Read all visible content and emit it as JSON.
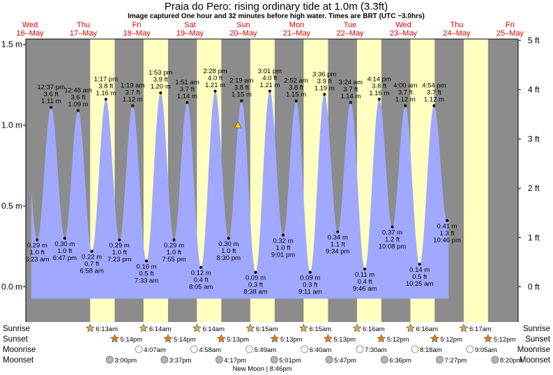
{
  "title": "Praia do Pero: rising  ordinary tide at 1.0m (3.3ft)",
  "subtitle": "Image captured One hour and 32 minutes before high water. Times are BRT (UTC −3.0hrs)",
  "chart_data": {
    "type": "area",
    "x_unit": "days since Wed 16-May 00:00",
    "ylabel_left_unit": "m",
    "ylabel_right_unit": "ft",
    "y_ticks_m": [
      "1.5 m",
      "1.0 m",
      "0.5 m",
      "0.0 m"
    ],
    "y_ticks_ft": [
      "5 ft",
      "4 ft",
      "3 ft",
      "2 ft",
      "1 ft",
      "0 ft"
    ],
    "days": [
      {
        "dow": "Wed",
        "date": "16–May"
      },
      {
        "dow": "Thu",
        "date": "17–May"
      },
      {
        "dow": "Fri",
        "date": "18–May"
      },
      {
        "dow": "Sat",
        "date": "19–May"
      },
      {
        "dow": "Sun",
        "date": "20–May"
      },
      {
        "dow": "Mon",
        "date": "21–May"
      },
      {
        "dow": "Tue",
        "date": "22–May"
      },
      {
        "dow": "Wed",
        "date": "23–May"
      },
      {
        "dow": "Thu",
        "date": "24–May"
      },
      {
        "dow": "Fri",
        "date": "25–May"
      }
    ],
    "tides": [
      {
        "type": "low",
        "t": "6:23 am",
        "m": "0.29 m",
        "ft": "1.0 ft",
        "h": 0.29
      },
      {
        "type": "high",
        "t": "12:37 pm",
        "m": "1.11 m",
        "ft": "3.6 ft",
        "h": 1.11
      },
      {
        "type": "low",
        "t": "6:47 pm",
        "m": "0.30 m",
        "ft": "1.0 ft",
        "h": 0.3
      },
      {
        "type": "high",
        "t": "12:48 am",
        "m": "1.09 m",
        "ft": "3.6 ft",
        "h": 1.09
      },
      {
        "type": "low",
        "t": "6:58 am",
        "m": "0.22 m",
        "ft": "0.7 ft",
        "h": 0.22
      },
      {
        "type": "high",
        "t": "1:17 pm",
        "m": "1.16 m",
        "ft": "3.8 ft",
        "h": 1.16
      },
      {
        "type": "low",
        "t": "7:23 pm",
        "m": "0.29 m",
        "ft": "1.0 ft",
        "h": 0.29
      },
      {
        "type": "high",
        "t": "1:19 am",
        "m": "1.12 m",
        "ft": "3.7 ft",
        "h": 1.12
      },
      {
        "type": "low",
        "t": "7:33 am",
        "m": "0.16 m",
        "ft": "0.5 ft",
        "h": 0.16
      },
      {
        "type": "high",
        "t": "1:53 pm",
        "m": "1.20 m",
        "ft": "3.9 ft",
        "h": 1.2
      },
      {
        "type": "low",
        "t": "7:55 pm",
        "m": "0.29 m",
        "ft": "1.0 ft",
        "h": 0.29
      },
      {
        "type": "high",
        "t": "1:51 am",
        "m": "1.14 m",
        "ft": "3.7 ft",
        "h": 1.14
      },
      {
        "type": "low",
        "t": "8:05 am",
        "m": "0.12 m",
        "ft": "0.4 ft",
        "h": 0.12
      },
      {
        "type": "high",
        "t": "2:28 pm",
        "m": "1.21 m",
        "ft": "4.0 ft",
        "h": 1.21
      },
      {
        "type": "low",
        "t": "8:30 pm",
        "m": "0.30 m",
        "ft": "1.0 ft",
        "h": 0.3
      },
      {
        "type": "high",
        "t": "2:19 am",
        "m": "1.15 m",
        "ft": "3.8 ft",
        "h": 1.15
      },
      {
        "type": "low",
        "t": "8:38 am",
        "m": "0.09 m",
        "ft": "0.3 ft",
        "h": 0.09
      },
      {
        "type": "high",
        "t": "3:01 pm",
        "m": "1.21 m",
        "ft": "4.0 ft",
        "h": 1.21
      },
      {
        "type": "low",
        "t": "9:01 pm",
        "m": "0.32 m",
        "ft": "1.0 ft",
        "h": 0.32
      },
      {
        "type": "high",
        "t": "2:52 am",
        "m": "1.15 m",
        "ft": "3.8 ft",
        "h": 1.15
      },
      {
        "type": "low",
        "t": "9:11 am",
        "m": "0.09 m",
        "ft": "0.3 ft",
        "h": 0.09
      },
      {
        "type": "high",
        "t": "3:36 pm",
        "m": "1.19 m",
        "ft": "3.9 ft",
        "h": 1.19
      },
      {
        "type": "low",
        "t": "9:34 pm",
        "m": "0.34 m",
        "ft": "1.1 ft",
        "h": 0.34
      },
      {
        "type": "high",
        "t": "3:24 am",
        "m": "1.14 m",
        "ft": "3.7 ft",
        "h": 1.14
      },
      {
        "type": "low",
        "t": "9:46 am",
        "m": "0.11 m",
        "ft": "0.4 ft",
        "h": 0.11
      },
      {
        "type": "high",
        "t": "4:14 pm",
        "m": "1.16 m",
        "ft": "3.8 ft",
        "h": 1.16
      },
      {
        "type": "low",
        "t": "10:08 pm",
        "m": "0.37 m",
        "ft": "1.2 ft",
        "h": 0.37
      },
      {
        "type": "high",
        "t": "4:00 am",
        "m": "1.12 m",
        "ft": "3.7 ft",
        "h": 1.12
      },
      {
        "type": "low",
        "t": "10:25 am",
        "m": "0.14 m",
        "ft": "0.5 ft",
        "h": 0.14
      },
      {
        "type": "high",
        "t": "4:54 pm",
        "m": "1.12 m",
        "ft": "3.7 ft",
        "h": 1.12
      },
      {
        "type": "low",
        "t": "10:46 pm",
        "m": "0.41 m",
        "ft": "1.3 ft",
        "h": 0.41
      }
    ],
    "current_marker_m": 1.0,
    "sun_moon": {
      "row_labels": {
        "sunrise": "Sunrise",
        "sunset": "Sunset",
        "moonrise": "Moonrise",
        "moonset": "Moonset"
      },
      "sunrise": [
        "6:13am",
        "6:14am",
        "6:14am",
        "6:15am",
        "6:15am",
        "6:16am",
        "6:16am",
        "6:17am"
      ],
      "sunset": [
        "5:14pm",
        "5:14pm",
        "5:13pm",
        "5:13pm",
        "5:13pm",
        "5:12pm",
        "5:12pm",
        "5:12pm"
      ],
      "moonrise": [
        "4:07am",
        "4:58am",
        "5:49am",
        "6:40am",
        "7:30am",
        "8:18am",
        "9:05am"
      ],
      "moonset": [
        "3:00pm",
        "3:37pm",
        "4:17pm",
        "5:01pm",
        "5:47pm",
        "6:36pm",
        "7:27pm",
        "8:20pm"
      ],
      "moon_phase_note": "New Moon | 8:46pm"
    },
    "colors": {
      "night": "#8c8c8c",
      "day": "#ffffc0",
      "water": "#a0a8ff",
      "day_label": "#e00000",
      "star": "#c8b45a",
      "sunset_star": "#e08030",
      "moonrise": "#fffff0",
      "moonset": "#b4b4b4"
    }
  }
}
